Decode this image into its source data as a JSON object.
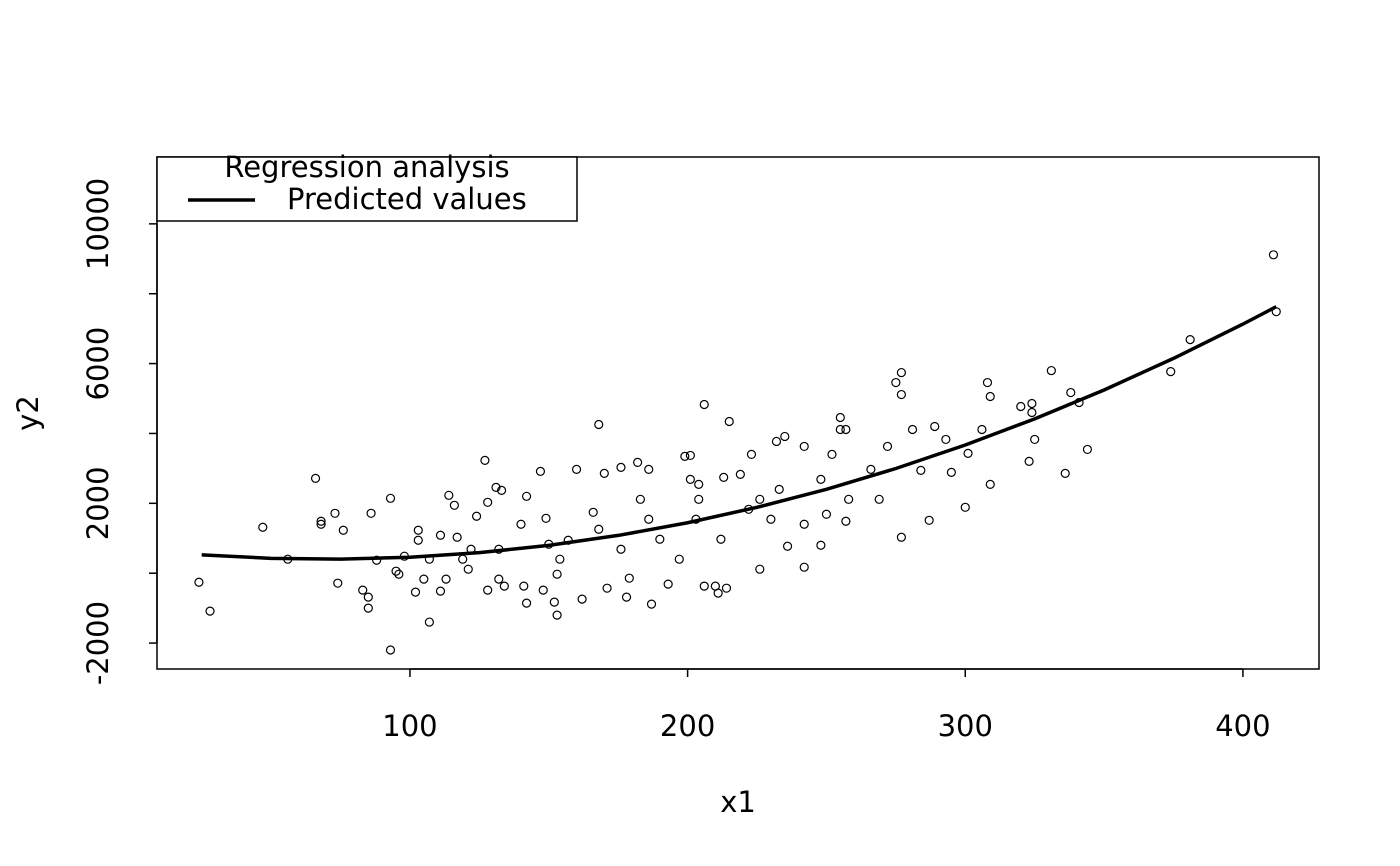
{
  "chart_data": {
    "type": "scatter",
    "xlabel": "x1",
    "ylabel": "y2",
    "xlim": [
      8.9,
      427.4
    ],
    "ylim": [
      -2743,
      11914
    ],
    "xticks": [
      100,
      200,
      300,
      400
    ],
    "yticks": [
      -2000,
      {
        "value": 0,
        "label": null
      },
      2000,
      {
        "value": 4000,
        "label": null
      },
      6000,
      {
        "value": 8000,
        "label": null
      },
      10000
    ],
    "color": "#000000",
    "x": [
      24,
      28,
      47,
      56,
      66,
      68,
      68,
      73,
      74,
      76,
      83,
      85,
      85,
      86,
      93,
      93,
      88,
      95,
      96,
      98,
      103,
      103,
      107,
      102,
      105,
      111,
      114,
      116,
      117,
      111,
      113,
      119,
      121,
      124,
      127,
      128,
      131,
      133,
      132,
      128,
      134,
      140,
      142,
      141,
      142,
      147,
      148,
      149,
      152,
      153,
      153,
      157,
      160,
      162,
      168,
      166,
      170,
      171,
      176,
      178,
      179,
      182,
      186,
      187,
      190,
      193,
      199,
      201,
      203,
      204,
      206,
      206,
      210,
      211,
      214,
      215,
      213,
      219,
      223,
      226,
      230,
      232,
      235,
      236,
      242,
      242,
      242,
      248,
      250,
      252,
      255,
      255,
      257,
      257,
      269,
      272,
      275,
      277,
      277,
      277,
      281,
      284,
      287,
      289,
      293,
      295,
      300,
      301,
      306,
      308,
      309,
      309,
      320,
      324,
      324,
      323,
      325,
      331,
      336,
      338,
      341,
      344,
      374,
      381,
      411,
      412,
      168,
      186,
      204,
      222,
      150,
      132,
      233,
      248,
      176,
      197,
      212,
      226,
      122,
      107,
      258,
      266,
      154,
      183,
      201
    ],
    "values": [
      -260,
      -1086,
      1314,
      400,
      2714,
      1400,
      1486,
      1714,
      -286,
      1229,
      -486,
      -686,
      -1000,
      1714,
      2143,
      -2200,
      371,
      57,
      -29,
      486,
      943,
      1229,
      -1400,
      -543,
      -171,
      1086,
      2229,
      1943,
      1029,
      -514,
      -171,
      400,
      114,
      1629,
      3229,
      2029,
      2457,
      2371,
      -171,
      -486,
      -371,
      1400,
      2200,
      -371,
      -857,
      2914,
      -486,
      1571,
      -829,
      -1200,
      -29,
      943,
      2971,
      -743,
      4257,
      1743,
      2857,
      -429,
      3029,
      -686,
      -143,
      3171,
      2971,
      -886,
      971,
      -314,
      3343,
      3371,
      1543,
      2543,
      4829,
      -371,
      -371,
      -571,
      -429,
      4343,
      2743,
      2829,
      3400,
      114,
      1543,
      3771,
      3914,
      771,
      171,
      1400,
      3629,
      800,
      1686,
      3400,
      4114,
      4457,
      4114,
      1486,
      2114,
      3629,
      5457,
      5114,
      5743,
      1029,
      4114,
      2943,
      1514,
      4200,
      3829,
      2886,
      1886,
      3429,
      4114,
      5457,
      5057,
      2543,
      4771,
      4857,
      4600,
      3200,
      3829,
      5800,
      2857,
      5171,
      4886,
      3543,
      5771,
      6686,
      9114,
      7486,
      1257,
      1543,
      2114,
      1829,
      829,
      686,
      2400,
      2686,
      686,
      400,
      971,
      2114,
      686,
      400,
      2114,
      2971,
      400,
      2114,
      2686
    ],
    "line": {
      "type": "line",
      "name": "Predicted values",
      "color": "#000000",
      "x": [
        25,
        50,
        75,
        100,
        125,
        150,
        175,
        200,
        225,
        250,
        275,
        300,
        325,
        350,
        375,
        400,
        412
      ],
      "values": [
        525,
        425,
        402,
        456,
        587,
        796,
        1081,
        1444,
        1885,
        2402,
        2997,
        3669,
        4418,
        5245,
        6149,
        7130,
        7629
      ]
    },
    "legend": {
      "title": "Regression analysis",
      "corner": "topleft"
    }
  }
}
